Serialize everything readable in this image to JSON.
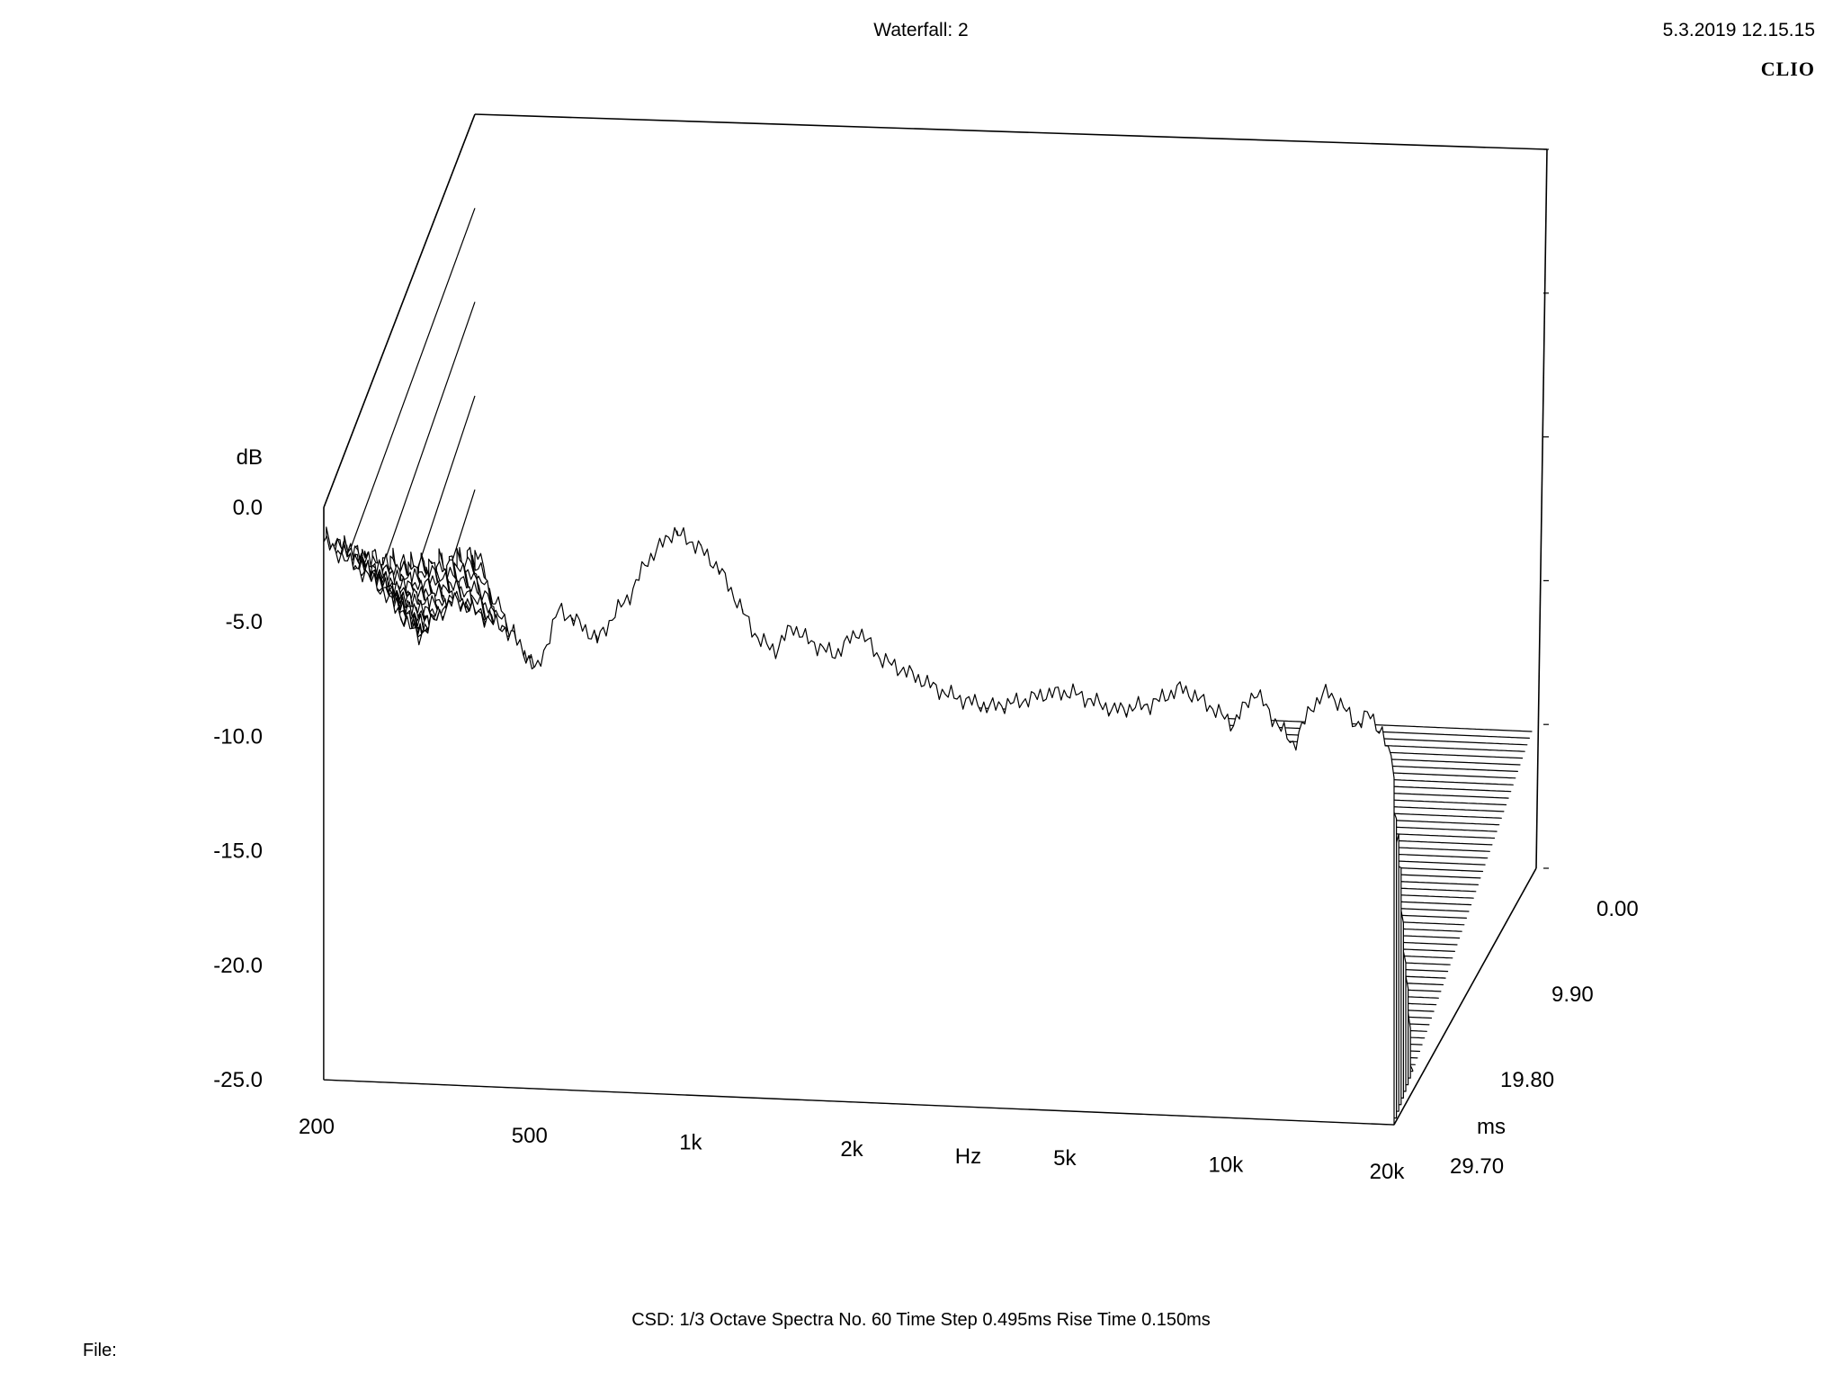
{
  "header": {
    "title": "Waterfall: 2",
    "timestamp": "5.3.2019 12.15.15",
    "brand": "CLIO"
  },
  "footer": {
    "info": "CSD:   1/3 Octave   Spectra No. 60   Time Step 0.495ms   Rise Time 0.150ms",
    "file_label": "File:"
  },
  "chart_data": {
    "type": "waterfall",
    "title": "Waterfall: 2",
    "xlabel": "Hz",
    "ylabel": "dB",
    "zlabel": "ms",
    "x_scale": "log",
    "xlim": [
      200,
      20000
    ],
    "ylim": [
      -25,
      0
    ],
    "zlim": [
      0,
      29.7
    ],
    "x_ticks": [
      "200",
      "500",
      "1k",
      "2k",
      "5k",
      "10k",
      "20k"
    ],
    "y_ticks": [
      "0.0",
      "-5.0",
      "-10.0",
      "-15.0",
      "-20.0",
      "-25.0"
    ],
    "z_ticks": [
      "0.00",
      "9.90",
      "19.80",
      "29.70"
    ],
    "spectra_count": 60,
    "time_step_ms": 0.495,
    "rise_time_ms": 0.15,
    "smoothing": "1/3 Octave",
    "series": [
      {
        "time_ms": 0.0,
        "freq_hz": [
          200,
          250,
          300,
          350,
          400,
          450,
          500,
          550,
          600,
          650,
          700,
          750,
          800,
          900,
          1000,
          1100,
          1200,
          1300,
          1400,
          1500,
          1600,
          1800,
          2000,
          2200,
          2500,
          2800,
          3000,
          3500,
          4000,
          4500,
          5000,
          6000,
          7000,
          8000,
          9000,
          10000,
          11000,
          12000,
          13000,
          14000,
          15000,
          16000,
          17000,
          18000,
          19000,
          20000
        ],
        "db": [
          -1.5,
          -3.2,
          -5.5,
          -3.8,
          -4.5,
          -5.2,
          -6.8,
          -4.0,
          -4.6,
          -5.3,
          -4.1,
          -3.2,
          -1.8,
          -0.4,
          -1.0,
          -2.0,
          -3.6,
          -5.0,
          -5.4,
          -4.3,
          -4.9,
          -5.5,
          -4.4,
          -5.6,
          -6.2,
          -6.8,
          -7.1,
          -7.5,
          -7.2,
          -6.8,
          -6.7,
          -7.4,
          -7.1,
          -6.3,
          -7.0,
          -7.8,
          -6.3,
          -7.6,
          -8.6,
          -6.9,
          -6.2,
          -6.8,
          -7.6,
          -7.1,
          -7.9,
          -9.5
        ]
      },
      {
        "time_ms": 29.7,
        "freq_hz": [
          200,
          500,
          1000,
          2000,
          5000,
          10000,
          20000
        ],
        "db": [
          -25.0,
          -25.0,
          -25.0,
          -25.0,
          -25.0,
          -25.0,
          -25.0
        ]
      }
    ]
  }
}
